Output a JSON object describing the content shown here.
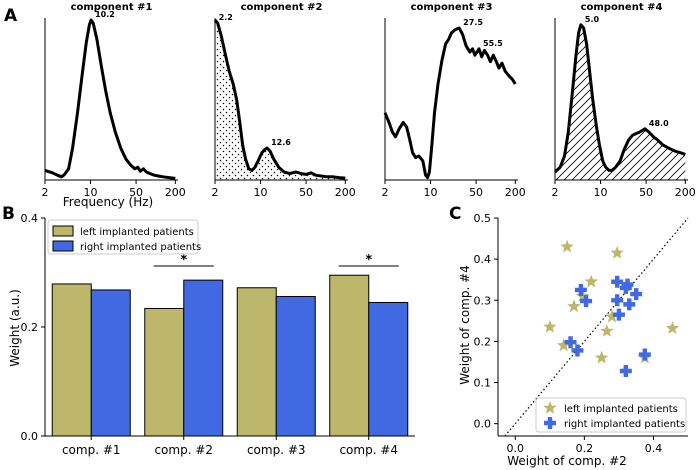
{
  "panel_labels": {
    "a": "A",
    "b": "B",
    "c": "C"
  },
  "chart_data": [
    {
      "type": "line",
      "panel": "A",
      "xlabel": "Frequency (Hz)",
      "x_scale": "log",
      "x_range": [
        2,
        220
      ],
      "x_ticks": [
        2,
        10,
        50,
        200
      ],
      "x_tick_labels": [
        "2",
        "10",
        "50",
        "200"
      ],
      "y_ticks": "none",
      "components": [
        {
          "title": "component #1",
          "hatch": "none",
          "points": [
            [
              2,
              0.06
            ],
            [
              2.6,
              0.045
            ],
            [
              3.1,
              0.03
            ],
            [
              3.6,
              0.02
            ],
            [
              4.0,
              0.035
            ],
            [
              4.6,
              0.07
            ],
            [
              5.3,
              0.2
            ],
            [
              6.3,
              0.42
            ],
            [
              7.5,
              0.67
            ],
            [
              8.6,
              0.86
            ],
            [
              9.6,
              0.97
            ],
            [
              10.2,
              1.0
            ],
            [
              11.0,
              0.98
            ],
            [
              12.5,
              0.88
            ],
            [
              14.5,
              0.72
            ],
            [
              17,
              0.56
            ],
            [
              20,
              0.42
            ],
            [
              24,
              0.3
            ],
            [
              29,
              0.2
            ],
            [
              35,
              0.13
            ],
            [
              42,
              0.09
            ],
            [
              48,
              0.07
            ],
            [
              53,
              0.08
            ],
            [
              58,
              0.055
            ],
            [
              65,
              0.07
            ],
            [
              72,
              0.05
            ],
            [
              82,
              0.04
            ],
            [
              95,
              0.03
            ],
            [
              110,
              0.025
            ],
            [
              130,
              0.02
            ],
            [
              160,
              0.015
            ],
            [
              200,
              0.01
            ]
          ],
          "peaks": [
            {
              "x": 10.2,
              "y": 1.0,
              "label": "10.2"
            }
          ]
        },
        {
          "title": "component #2",
          "hatch": "dots",
          "points": [
            [
              2,
              1.0
            ],
            [
              2.2,
              0.98
            ],
            [
              2.5,
              0.9
            ],
            [
              2.9,
              0.78
            ],
            [
              3.3,
              0.68
            ],
            [
              3.8,
              0.6
            ],
            [
              4.3,
              0.5
            ],
            [
              4.8,
              0.36
            ],
            [
              5.3,
              0.22
            ],
            [
              5.9,
              0.13
            ],
            [
              6.6,
              0.07
            ],
            [
              7.4,
              0.06
            ],
            [
              8.2,
              0.08
            ],
            [
              9.2,
              0.12
            ],
            [
              10.5,
              0.17
            ],
            [
              11.6,
              0.19
            ],
            [
              12.6,
              0.2
            ],
            [
              14,
              0.18
            ],
            [
              16,
              0.13
            ],
            [
              19,
              0.08
            ],
            [
              23,
              0.05
            ],
            [
              28,
              0.04
            ],
            [
              35,
              0.05
            ],
            [
              42,
              0.04
            ],
            [
              50,
              0.035
            ],
            [
              60,
              0.045
            ],
            [
              70,
              0.03
            ],
            [
              85,
              0.025
            ],
            [
              105,
              0.02
            ],
            [
              130,
              0.02
            ],
            [
              160,
              0.015
            ],
            [
              200,
              0.012
            ]
          ],
          "peaks": [
            {
              "x": 2.2,
              "y": 0.98,
              "label": "2.2"
            },
            {
              "x": 12.6,
              "y": 0.2,
              "label": "12.6"
            }
          ]
        },
        {
          "title": "component #3",
          "hatch": "none",
          "points": [
            [
              2,
              0.42
            ],
            [
              2.3,
              0.36
            ],
            [
              2.6,
              0.3
            ],
            [
              2.9,
              0.27
            ],
            [
              3.3,
              0.32
            ],
            [
              3.8,
              0.36
            ],
            [
              4.3,
              0.33
            ],
            [
              4.8,
              0.25
            ],
            [
              5.3,
              0.17
            ],
            [
              5.9,
              0.14
            ],
            [
              6.6,
              0.15
            ],
            [
              7.6,
              0.12
            ],
            [
              8.4,
              0.03
            ],
            [
              9.0,
              0.015
            ],
            [
              9.6,
              0.05
            ],
            [
              10.4,
              0.2
            ],
            [
              11.5,
              0.42
            ],
            [
              13,
              0.6
            ],
            [
              15,
              0.75
            ],
            [
              17,
              0.85
            ],
            [
              19,
              0.88
            ],
            [
              21,
              0.92
            ],
            [
              24,
              0.94
            ],
            [
              27.5,
              0.95
            ],
            [
              31,
              0.91
            ],
            [
              35,
              0.84
            ],
            [
              40,
              0.8
            ],
            [
              44,
              0.82
            ],
            [
              48,
              0.78
            ],
            [
              55.5,
              0.82
            ],
            [
              61,
              0.77
            ],
            [
              67,
              0.81
            ],
            [
              75,
              0.78
            ],
            [
              83,
              0.74
            ],
            [
              92,
              0.78
            ],
            [
              102,
              0.74
            ],
            [
              112,
              0.7
            ],
            [
              125,
              0.73
            ],
            [
              140,
              0.68
            ],
            [
              160,
              0.65
            ],
            [
              180,
              0.63
            ],
            [
              200,
              0.6
            ]
          ],
          "peaks": [
            {
              "x": 27.5,
              "y": 0.95,
              "label": "27.5"
            },
            {
              "x": 55.5,
              "y": 0.82,
              "label": "55.5"
            }
          ]
        },
        {
          "title": "component #4",
          "hatch": "diagonal",
          "points": [
            [
              2,
              0.05
            ],
            [
              2.4,
              0.08
            ],
            [
              2.8,
              0.15
            ],
            [
              3.2,
              0.3
            ],
            [
              3.7,
              0.55
            ],
            [
              4.2,
              0.78
            ],
            [
              4.6,
              0.92
            ],
            [
              5.0,
              0.97
            ],
            [
              5.5,
              0.95
            ],
            [
              6.1,
              0.85
            ],
            [
              6.8,
              0.68
            ],
            [
              7.6,
              0.5
            ],
            [
              8.6,
              0.34
            ],
            [
              9.6,
              0.22
            ],
            [
              10.8,
              0.12
            ],
            [
              12,
              0.08
            ],
            [
              13.5,
              0.06
            ],
            [
              15,
              0.06
            ],
            [
              17,
              0.08
            ],
            [
              20,
              0.12
            ],
            [
              23,
              0.19
            ],
            [
              27,
              0.25
            ],
            [
              31,
              0.28
            ],
            [
              35,
              0.29
            ],
            [
              40,
              0.3
            ],
            [
              48,
              0.32
            ],
            [
              55,
              0.3
            ],
            [
              65,
              0.27
            ],
            [
              75,
              0.25
            ],
            [
              90,
              0.22
            ],
            [
              110,
              0.2
            ],
            [
              140,
              0.18
            ],
            [
              170,
              0.17
            ],
            [
              200,
              0.16
            ]
          ],
          "peaks": [
            {
              "x": 5.0,
              "y": 0.97,
              "label": "5.0"
            },
            {
              "x": 48.0,
              "y": 0.32,
              "label": "48.0"
            }
          ]
        }
      ]
    },
    {
      "type": "bar",
      "panel": "B",
      "ylabel": "Weight (a.u.)",
      "ylim": [
        0,
        0.4
      ],
      "y_ticks": [
        0,
        0.2,
        0.4
      ],
      "y_tick_labels": [
        "0.0",
        "0.2",
        "0.4"
      ],
      "categories": [
        "comp. #1",
        "comp. #2",
        "comp. #3",
        "comp. #4"
      ],
      "series": [
        {
          "name": "left implanted patients",
          "color": "#bdb76b",
          "values": [
            0.279,
            0.234,
            0.272,
            0.295
          ]
        },
        {
          "name": "right implanted patients",
          "color": "#4169e1",
          "values": [
            0.268,
            0.286,
            0.256,
            0.245
          ]
        }
      ],
      "significance": [
        {
          "category_index": 1,
          "label": "*"
        },
        {
          "category_index": 3,
          "label": "*"
        }
      ],
      "legend_position": "top-left"
    },
    {
      "type": "scatter",
      "panel": "C",
      "xlabel": "Weight of comp. #2",
      "ylabel": "Weight of comp. #4",
      "xlim": [
        -0.05,
        0.5
      ],
      "ylim": [
        -0.03,
        0.5
      ],
      "x_ticks": [
        0,
        0.2,
        0.4
      ],
      "x_tick_labels": [
        "0.0",
        "0.2",
        "0.4"
      ],
      "y_ticks": [
        0,
        0.1,
        0.2,
        0.3,
        0.4,
        0.5
      ],
      "y_tick_labels": [
        "0.0",
        "0.1",
        "0.2",
        "0.3",
        "0.4",
        "0.5"
      ],
      "reference_line": "y = x (dotted)",
      "legend_position": "bottom-right",
      "series": [
        {
          "name": "left implanted patients",
          "marker": "star",
          "color": "#bdb76b",
          "points": [
            [
              0.1,
              0.235
            ],
            [
              0.14,
              0.19
            ],
            [
              0.15,
              0.43
            ],
            [
              0.17,
              0.285
            ],
            [
              0.195,
              0.31
            ],
            [
              0.22,
              0.345
            ],
            [
              0.25,
              0.16
            ],
            [
              0.265,
              0.225
            ],
            [
              0.28,
              0.26
            ],
            [
              0.295,
              0.415
            ],
            [
              0.375,
              0.16
            ],
            [
              0.455,
              0.232
            ]
          ]
        },
        {
          "name": "right implanted patients",
          "marker": "plus",
          "color": "#4169e1",
          "points": [
            [
              0.16,
              0.198
            ],
            [
              0.18,
              0.178
            ],
            [
              0.19,
              0.325
            ],
            [
              0.205,
              0.298
            ],
            [
              0.295,
              0.345
            ],
            [
              0.295,
              0.3
            ],
            [
              0.3,
              0.265
            ],
            [
              0.32,
              0.128
            ],
            [
              0.32,
              0.33
            ],
            [
              0.325,
              0.338
            ],
            [
              0.33,
              0.29
            ],
            [
              0.35,
              0.315
            ],
            [
              0.375,
              0.168
            ]
          ]
        }
      ]
    }
  ]
}
